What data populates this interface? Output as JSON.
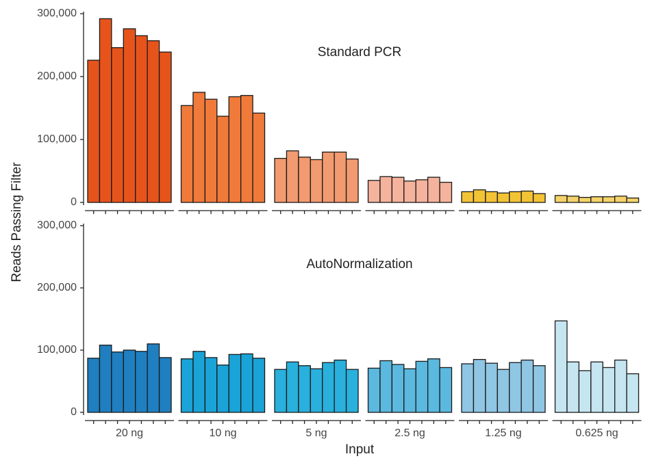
{
  "chart_data": {
    "type": "bar",
    "xlabel": "Input",
    "ylabel": "Reads Passing Filter",
    "categories": [
      "20 ng",
      "10 ng",
      "5 ng",
      "2.5 ng",
      "1.25 ng",
      "0.625 ng"
    ],
    "ylim": [
      0,
      300000
    ],
    "yticks": [
      0,
      {
        "value": 100000,
        "label": "100,000"
      },
      {
        "value": 200000,
        "label": "200,000"
      },
      {
        "value": 300000,
        "label": "300,000"
      }
    ],
    "panels": [
      {
        "title": "Standard PCR",
        "colors": [
          "#e6541c",
          "#f07a3a",
          "#f29a70",
          "#f5b29c",
          "#f2c335",
          "#f5d36a"
        ],
        "values": [
          [
            226000,
            292000,
            246000,
            276000,
            265000,
            257000,
            239000
          ],
          [
            154000,
            175000,
            164000,
            137000,
            168000,
            170000,
            142000
          ],
          [
            70000,
            82000,
            72000,
            68000,
            80000,
            80000,
            69000
          ],
          [
            35000,
            41000,
            40000,
            34000,
            36000,
            40000,
            32000
          ],
          [
            17000,
            20000,
            17000,
            15000,
            17000,
            18000,
            14000
          ],
          [
            11000,
            10000,
            8000,
            9000,
            9000,
            10000,
            7000
          ]
        ]
      },
      {
        "title": "AutoNormalization",
        "colors": [
          "#1f7fc0",
          "#1aa3d6",
          "#29b0dc",
          "#5bb8de",
          "#8fc6e4",
          "#c5e5f0"
        ],
        "values": [
          [
            87000,
            108000,
            97000,
            100000,
            98000,
            110000,
            88000
          ],
          [
            86000,
            98000,
            88000,
            76000,
            93000,
            94000,
            87000
          ],
          [
            69000,
            81000,
            75000,
            70000,
            80000,
            84000,
            69000
          ],
          [
            71000,
            83000,
            77000,
            70000,
            82000,
            86000,
            72000
          ],
          [
            78000,
            85000,
            79000,
            69000,
            80000,
            84000,
            75000
          ],
          [
            147000,
            81000,
            67000,
            81000,
            72000,
            84000,
            62000
          ]
        ]
      }
    ]
  }
}
